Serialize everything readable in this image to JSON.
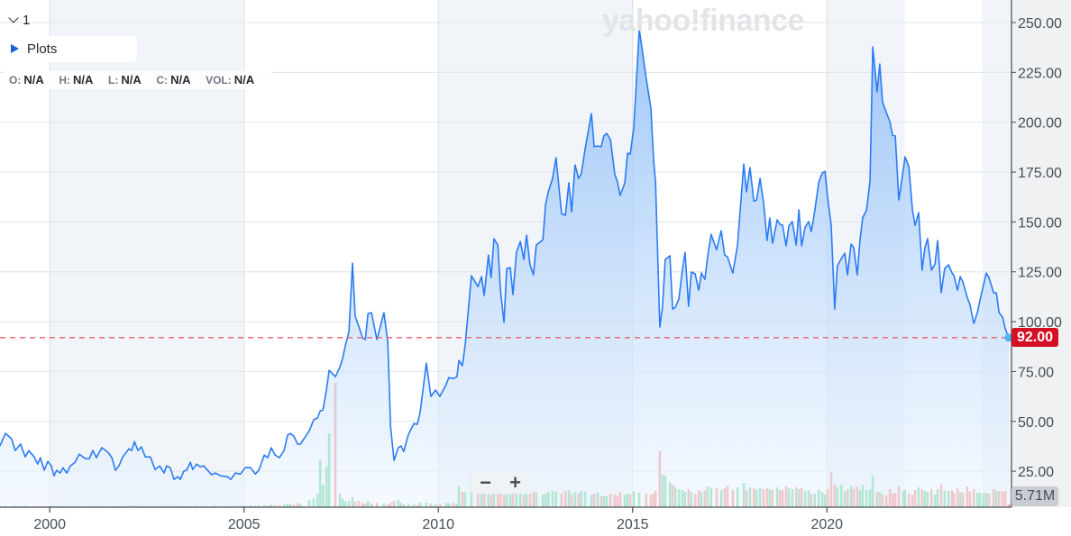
{
  "header": {
    "collapse_label": "1",
    "plots_label": "Plots",
    "watermark": "yahoo!finance",
    "ohlc": [
      {
        "key": "O:",
        "value": "N/A"
      },
      {
        "key": "H:",
        "value": "N/A"
      },
      {
        "key": "L:",
        "value": "N/A"
      },
      {
        "key": "C:",
        "value": "N/A"
      },
      {
        "key": "VOL:",
        "value": "N/A"
      }
    ]
  },
  "controls": {
    "zoom_out": "−",
    "zoom_in": "+"
  },
  "badges": {
    "last_price": "92.00",
    "last_volume": "5.71M"
  },
  "colors": {
    "line": "#2b7bf5",
    "fill_top": "#8dbdf7",
    "fill_bottom": "#eef6ff",
    "volume_up": "#5fcf95",
    "volume_down": "#f4887f",
    "last_price_line": "#e8616e",
    "last_price_badge": "#d50f24",
    "band": "#f1f4f8"
  },
  "chart_data": {
    "type": "area",
    "title": "",
    "xlabel": "",
    "ylabel": "",
    "x_ticks": [
      "2000",
      "2005",
      "2010",
      "2015",
      "2020"
    ],
    "x_tick_values": [
      2000,
      2005,
      2010,
      2015,
      2020
    ],
    "y_ticks": [
      "25.00",
      "50.00",
      "75.00",
      "100.00",
      "125.00",
      "150.00",
      "175.00",
      "200.00",
      "225.00",
      "250.00"
    ],
    "y_tick_values": [
      25,
      50,
      75,
      100,
      125,
      150,
      175,
      200,
      225,
      250
    ],
    "xlim": [
      1998.72,
      2024.75
    ],
    "ylim": [
      7,
      250
    ],
    "y_axis_side": "right",
    "grid": true,
    "shaded_bands": [
      [
        2000,
        2005
      ],
      [
        2010,
        2015
      ],
      [
        2020,
        2022
      ],
      [
        2024,
        2024.75
      ]
    ],
    "last_price": 92.0,
    "volume_unit": "M",
    "series_columns": [
      "year",
      "close",
      "volume_M"
    ],
    "points": [
      [
        1998.72,
        37.7,
        3
      ],
      [
        1998.86,
        44.0,
        3
      ],
      [
        1999.02,
        41.3,
        2
      ],
      [
        1999.11,
        35.4,
        3
      ],
      [
        1999.25,
        38.6,
        2
      ],
      [
        1999.37,
        32.2,
        3
      ],
      [
        1999.46,
        35.4,
        2
      ],
      [
        1999.6,
        32.2,
        3
      ],
      [
        1999.69,
        28.6,
        2
      ],
      [
        1999.76,
        31.8,
        2
      ],
      [
        1999.86,
        25.5,
        3
      ],
      [
        1999.95,
        30.0,
        2
      ],
      [
        2000.04,
        27.7,
        3
      ],
      [
        2000.11,
        22.7,
        2
      ],
      [
        2000.18,
        25.5,
        2
      ],
      [
        2000.27,
        24.1,
        3
      ],
      [
        2000.34,
        26.8,
        2
      ],
      [
        2000.44,
        24.1,
        2
      ],
      [
        2000.53,
        27.7,
        3
      ],
      [
        2000.65,
        29.5,
        2
      ],
      [
        2000.76,
        33.6,
        3
      ],
      [
        2000.92,
        31.3,
        2
      ],
      [
        2001.02,
        31.3,
        2
      ],
      [
        2001.11,
        35.4,
        3
      ],
      [
        2001.2,
        31.8,
        2
      ],
      [
        2001.34,
        36.8,
        3
      ],
      [
        2001.5,
        34.5,
        2
      ],
      [
        2001.6,
        31.8,
        2
      ],
      [
        2001.69,
        25.5,
        3
      ],
      [
        2001.78,
        27.7,
        2
      ],
      [
        2001.88,
        32.2,
        3
      ],
      [
        2002.04,
        36.3,
        2
      ],
      [
        2002.11,
        35.4,
        3
      ],
      [
        2002.18,
        39.9,
        3
      ],
      [
        2002.27,
        35.4,
        2
      ],
      [
        2002.36,
        37.2,
        3
      ],
      [
        2002.46,
        32.2,
        2
      ],
      [
        2002.59,
        32.2,
        3
      ],
      [
        2002.71,
        25.9,
        2
      ],
      [
        2002.83,
        27.7,
        3
      ],
      [
        2002.94,
        24.1,
        2
      ],
      [
        2003.01,
        27.7,
        3
      ],
      [
        2003.1,
        26.8,
        2
      ],
      [
        2003.2,
        20.9,
        3
      ],
      [
        2003.29,
        22.3,
        2
      ],
      [
        2003.36,
        20.9,
        3
      ],
      [
        2003.45,
        25.0,
        3
      ],
      [
        2003.52,
        25.5,
        2
      ],
      [
        2003.62,
        29.5,
        3
      ],
      [
        2003.68,
        25.9,
        2
      ],
      [
        2003.78,
        28.6,
        3
      ],
      [
        2003.87,
        27.3,
        2
      ],
      [
        2003.96,
        27.7,
        3
      ],
      [
        2004.17,
        23.2,
        2
      ],
      [
        2004.26,
        24.1,
        3
      ],
      [
        2004.4,
        22.7,
        2
      ],
      [
        2004.57,
        22.3,
        3
      ],
      [
        2004.66,
        20.9,
        2
      ],
      [
        2004.78,
        24.1,
        3
      ],
      [
        2004.91,
        23.6,
        3
      ],
      [
        2005.03,
        26.8,
        3
      ],
      [
        2005.17,
        26.8,
        4
      ],
      [
        2005.29,
        23.6,
        3
      ],
      [
        2005.38,
        25.5,
        4
      ],
      [
        2005.52,
        33.1,
        5
      ],
      [
        2005.61,
        31.8,
        4
      ],
      [
        2005.7,
        36.8,
        6
      ],
      [
        2005.8,
        33.1,
        4
      ],
      [
        2005.91,
        31.8,
        5
      ],
      [
        2006.03,
        35.4,
        6
      ],
      [
        2006.12,
        43.1,
        8
      ],
      [
        2006.19,
        44.0,
        7
      ],
      [
        2006.28,
        42.6,
        6
      ],
      [
        2006.38,
        38.6,
        9
      ],
      [
        2006.45,
        38.6,
        7
      ],
      [
        2006.68,
        45.3,
        16
      ],
      [
        2006.79,
        50.8,
        20
      ],
      [
        2006.89,
        51.7,
        30
      ],
      [
        2006.96,
        55.3,
        104
      ],
      [
        2007.03,
        55.7,
        50
      ],
      [
        2007.12,
        65.7,
        90
      ],
      [
        2007.19,
        75.6,
        164
      ],
      [
        2007.35,
        72.4,
        276
      ],
      [
        2007.47,
        77.4,
        30
      ],
      [
        2007.54,
        81.9,
        18
      ],
      [
        2007.61,
        88.3,
        12
      ],
      [
        2007.7,
        95.0,
        14
      ],
      [
        2007.79,
        129.4,
        22
      ],
      [
        2007.86,
        102.7,
        12
      ],
      [
        2007.95,
        97.7,
        14
      ],
      [
        2008.05,
        91.9,
        10
      ],
      [
        2008.12,
        91.0,
        8
      ],
      [
        2008.19,
        104.1,
        14
      ],
      [
        2008.28,
        104.5,
        8
      ],
      [
        2008.42,
        91.0,
        10
      ],
      [
        2008.6,
        104.5,
        8
      ],
      [
        2008.7,
        89.6,
        6
      ],
      [
        2008.77,
        47.6,
        10
      ],
      [
        2008.86,
        30.4,
        14
      ],
      [
        2008.97,
        36.8,
        16
      ],
      [
        2009.04,
        37.7,
        10
      ],
      [
        2009.11,
        34.9,
        6
      ],
      [
        2009.23,
        43.5,
        8
      ],
      [
        2009.37,
        48.9,
        6
      ],
      [
        2009.46,
        48.5,
        4
      ],
      [
        2009.53,
        54.4,
        10
      ],
      [
        2009.69,
        79.2,
        10
      ],
      [
        2009.81,
        62.5,
        8
      ],
      [
        2009.93,
        65.7,
        6
      ],
      [
        2010.04,
        62.5,
        8
      ],
      [
        2010.2,
        68.4,
        10
      ],
      [
        2010.27,
        72.0,
        8
      ],
      [
        2010.39,
        71.5,
        10
      ],
      [
        2010.48,
        72.4,
        8
      ],
      [
        2010.53,
        80.6,
        46
      ],
      [
        2010.62,
        77.9,
        34
      ],
      [
        2010.69,
        88.3,
        34
      ],
      [
        2010.85,
        123.0,
        68
      ],
      [
        2011.02,
        117.6,
        68
      ],
      [
        2011.11,
        122.6,
        38
      ],
      [
        2011.18,
        113.1,
        32
      ],
      [
        2011.29,
        133.4,
        28
      ],
      [
        2011.36,
        122.1,
        28
      ],
      [
        2011.43,
        141.6,
        34
      ],
      [
        2011.53,
        138.4,
        30
      ],
      [
        2011.6,
        115.4,
        34
      ],
      [
        2011.69,
        99.6,
        28
      ],
      [
        2011.76,
        126.7,
        30
      ],
      [
        2011.85,
        127.1,
        28
      ],
      [
        2011.92,
        113.6,
        36
      ],
      [
        2012.01,
        134.8,
        36
      ],
      [
        2012.11,
        140.2,
        30
      ],
      [
        2012.2,
        131.2,
        28
      ],
      [
        2012.27,
        143.4,
        32
      ],
      [
        2012.36,
        128.5,
        30
      ],
      [
        2012.45,
        123.5,
        34
      ],
      [
        2012.52,
        138.4,
        32
      ],
      [
        2012.69,
        141.1,
        28
      ],
      [
        2012.76,
        158.7,
        30
      ],
      [
        2012.83,
        165.1,
        34
      ],
      [
        2012.94,
        171.8,
        36
      ],
      [
        2013.03,
        182.2,
        34
      ],
      [
        2013.17,
        154.2,
        30
      ],
      [
        2013.27,
        153.3,
        36
      ],
      [
        2013.36,
        169.6,
        38
      ],
      [
        2013.43,
        155.1,
        28
      ],
      [
        2013.52,
        178.6,
        34
      ],
      [
        2013.61,
        171.8,
        30
      ],
      [
        2013.68,
        174.1,
        36
      ],
      [
        2013.78,
        186.7,
        34
      ],
      [
        2013.94,
        204.4,
        28
      ],
      [
        2014.01,
        187.7,
        30
      ],
      [
        2014.1,
        188.1,
        32
      ],
      [
        2014.19,
        187.7,
        24
      ],
      [
        2014.26,
        193.1,
        26
      ],
      [
        2014.33,
        194.4,
        24
      ],
      [
        2014.43,
        191.3,
        30
      ],
      [
        2014.54,
        174.1,
        28
      ],
      [
        2014.61,
        170.0,
        24
      ],
      [
        2014.68,
        163.3,
        34
      ],
      [
        2014.8,
        169.6,
        28
      ],
      [
        2014.87,
        184.5,
        30
      ],
      [
        2014.94,
        184.0,
        28
      ],
      [
        2015.03,
        197.1,
        36
      ],
      [
        2015.17,
        246.8,
        32
      ],
      [
        2015.35,
        222.0,
        30
      ],
      [
        2015.47,
        207.1,
        28
      ],
      [
        2015.54,
        181.3,
        30
      ],
      [
        2015.59,
        169.6,
        36
      ],
      [
        2015.7,
        97.3,
        124
      ],
      [
        2015.77,
        107.7,
        72
      ],
      [
        2015.84,
        131.2,
        70
      ],
      [
        2015.96,
        133.0,
        56
      ],
      [
        2016.03,
        106.3,
        50
      ],
      [
        2016.1,
        107.2,
        44
      ],
      [
        2016.19,
        111.3,
        40
      ],
      [
        2016.28,
        125.8,
        38
      ],
      [
        2016.35,
        134.8,
        34
      ],
      [
        2016.44,
        107.7,
        40
      ],
      [
        2016.51,
        124.9,
        34
      ],
      [
        2016.61,
        124.0,
        30
      ],
      [
        2016.7,
        115.8,
        38
      ],
      [
        2016.77,
        124.4,
        34
      ],
      [
        2016.86,
        121.2,
        38
      ],
      [
        2016.93,
        132.5,
        46
      ],
      [
        2017.02,
        143.8,
        44
      ],
      [
        2017.16,
        136.1,
        42
      ],
      [
        2017.28,
        145.6,
        38
      ],
      [
        2017.37,
        133.4,
        42
      ],
      [
        2017.44,
        132.5,
        48
      ],
      [
        2017.58,
        124.4,
        38
      ],
      [
        2017.7,
        138.4,
        44
      ],
      [
        2017.86,
        179.1,
        54
      ],
      [
        2017.93,
        165.1,
        38
      ],
      [
        2018.02,
        177.3,
        44
      ],
      [
        2018.12,
        160.5,
        42
      ],
      [
        2018.19,
        161.0,
        38
      ],
      [
        2018.28,
        171.8,
        44
      ],
      [
        2018.37,
        159.6,
        40
      ],
      [
        2018.46,
        140.7,
        42
      ],
      [
        2018.53,
        152.0,
        40
      ],
      [
        2018.6,
        139.3,
        38
      ],
      [
        2018.72,
        151.1,
        44
      ],
      [
        2018.79,
        148.8,
        38
      ],
      [
        2018.86,
        148.4,
        38
      ],
      [
        2018.95,
        138.0,
        46
      ],
      [
        2019.02,
        147.9,
        42
      ],
      [
        2019.11,
        150.2,
        40
      ],
      [
        2019.21,
        138.4,
        44
      ],
      [
        2019.28,
        156.0,
        40
      ],
      [
        2019.35,
        138.0,
        42
      ],
      [
        2019.44,
        147.4,
        36
      ],
      [
        2019.53,
        150.2,
        38
      ],
      [
        2019.6,
        145.2,
        30
      ],
      [
        2019.69,
        156.0,
        30
      ],
      [
        2019.79,
        170.0,
        38
      ],
      [
        2019.88,
        174.5,
        34
      ],
      [
        2019.95,
        175.4,
        28
      ],
      [
        2020.02,
        161.9,
        40
      ],
      [
        2020.11,
        148.3,
        78
      ],
      [
        2020.2,
        106.3,
        50
      ],
      [
        2020.27,
        128.0,
        44
      ],
      [
        2020.37,
        131.6,
        50
      ],
      [
        2020.46,
        134.3,
        36
      ],
      [
        2020.53,
        123.5,
        40
      ],
      [
        2020.62,
        138.9,
        46
      ],
      [
        2020.69,
        137.1,
        40
      ],
      [
        2020.78,
        123.5,
        46
      ],
      [
        2020.85,
        140.7,
        38
      ],
      [
        2020.92,
        152.0,
        50
      ],
      [
        2021.02,
        156.0,
        38
      ],
      [
        2021.11,
        170.9,
        40
      ],
      [
        2021.18,
        237.8,
        70
      ],
      [
        2021.29,
        215.2,
        34
      ],
      [
        2021.36,
        229.2,
        34
      ],
      [
        2021.43,
        210.2,
        28
      ],
      [
        2021.53,
        204.8,
        26
      ],
      [
        2021.62,
        200.3,
        40
      ],
      [
        2021.69,
        193.5,
        30
      ],
      [
        2021.76,
        193.1,
        32
      ],
      [
        2021.85,
        161.0,
        46
      ],
      [
        2021.97,
        176.8,
        36
      ],
      [
        2022.01,
        182.7,
        38
      ],
      [
        2022.11,
        177.7,
        30
      ],
      [
        2022.2,
        156.0,
        28
      ],
      [
        2022.27,
        148.3,
        38
      ],
      [
        2022.36,
        154.7,
        44
      ],
      [
        2022.45,
        125.8,
        40
      ],
      [
        2022.52,
        137.0,
        36
      ],
      [
        2022.59,
        141.6,
        34
      ],
      [
        2022.69,
        125.8,
        40
      ],
      [
        2022.78,
        128.9,
        28
      ],
      [
        2022.85,
        140.7,
        40
      ],
      [
        2022.94,
        114.5,
        50
      ],
      [
        2023.03,
        126.7,
        36
      ],
      [
        2023.13,
        128.5,
        36
      ],
      [
        2023.22,
        124.4,
        38
      ],
      [
        2023.27,
        123.0,
        32
      ],
      [
        2023.36,
        115.8,
        42
      ],
      [
        2023.43,
        122.6,
        34
      ],
      [
        2023.5,
        119.9,
        32
      ],
      [
        2023.61,
        112.2,
        46
      ],
      [
        2023.68,
        108.6,
        36
      ],
      [
        2023.78,
        99.1,
        40
      ],
      [
        2023.87,
        104.5,
        32
      ],
      [
        2023.94,
        110.8,
        32
      ],
      [
        2024.03,
        118.5,
        30
      ],
      [
        2024.1,
        124.4,
        32
      ],
      [
        2024.17,
        122.1,
        30
      ],
      [
        2024.29,
        114.5,
        40
      ],
      [
        2024.36,
        114.5,
        36
      ],
      [
        2024.43,
        104.5,
        36
      ],
      [
        2024.52,
        102.3,
        34
      ],
      [
        2024.59,
        96.4,
        36
      ],
      [
        2024.68,
        92.0,
        6
      ]
    ]
  }
}
